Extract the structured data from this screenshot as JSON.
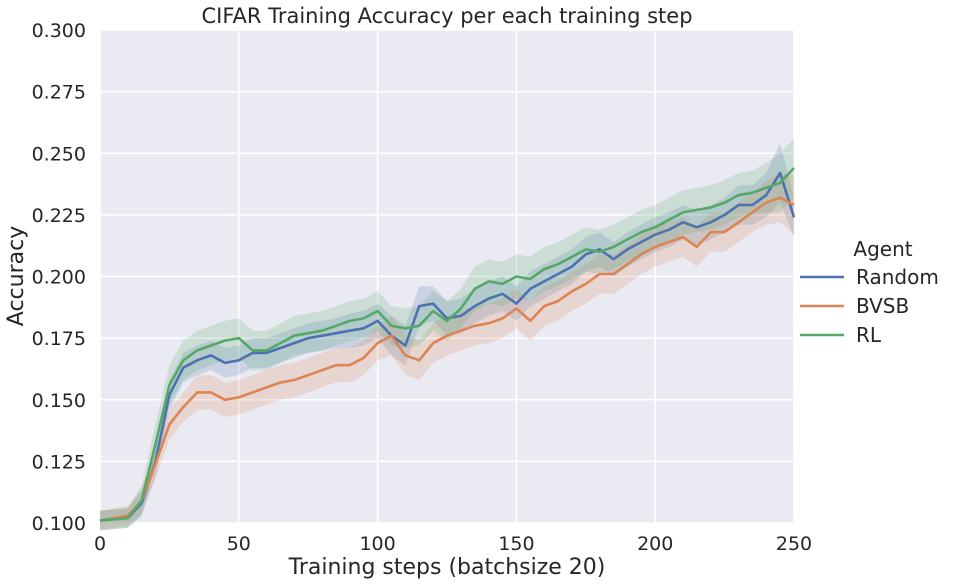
{
  "chart_data": {
    "type": "line",
    "title": "CIFAR Training Accuracy per each training step",
    "xlabel": "Training steps (batchsize 20)",
    "ylabel": "Accuracy",
    "xlim": [
      0,
      250
    ],
    "ylim": [
      0.1,
      0.3
    ],
    "xticks": [
      0,
      50,
      100,
      150,
      200,
      250
    ],
    "xtick_labels": [
      "0",
      "50",
      "100",
      "150",
      "200",
      "250"
    ],
    "yticks": [
      0.1,
      0.125,
      0.15,
      0.175,
      0.2,
      0.225,
      0.25,
      0.275,
      0.3
    ],
    "ytick_labels": [
      "0.100",
      "0.125",
      "0.150",
      "0.175",
      "0.200",
      "0.225",
      "0.250",
      "0.275",
      "0.300"
    ],
    "grid": true,
    "legend": {
      "title": "Agent",
      "placement": "right"
    },
    "x": [
      0,
      10,
      15,
      20,
      25,
      30,
      35,
      40,
      45,
      50,
      55,
      60,
      65,
      70,
      75,
      80,
      85,
      90,
      95,
      100,
      105,
      110,
      115,
      120,
      125,
      130,
      135,
      140,
      145,
      150,
      155,
      160,
      165,
      170,
      175,
      180,
      185,
      190,
      195,
      200,
      205,
      210,
      215,
      220,
      225,
      230,
      235,
      240,
      245,
      250
    ],
    "series": [
      {
        "name": "Random",
        "color": "#4c72b0",
        "values": [
          0.101,
          0.102,
          0.108,
          0.125,
          0.152,
          0.163,
          0.166,
          0.168,
          0.165,
          0.166,
          0.169,
          0.169,
          0.171,
          0.173,
          0.175,
          0.176,
          0.177,
          0.178,
          0.179,
          0.182,
          0.176,
          0.172,
          0.188,
          0.189,
          0.183,
          0.184,
          0.188,
          0.191,
          0.193,
          0.189,
          0.195,
          0.198,
          0.201,
          0.204,
          0.209,
          0.211,
          0.207,
          0.211,
          0.214,
          0.217,
          0.219,
          0.222,
          0.22,
          0.222,
          0.225,
          0.229,
          0.229,
          0.233,
          0.242,
          0.224
        ],
        "band": [
          0.004,
          0.004,
          0.005,
          0.006,
          0.006,
          0.006,
          0.006,
          0.006,
          0.006,
          0.006,
          0.006,
          0.006,
          0.006,
          0.006,
          0.006,
          0.006,
          0.006,
          0.007,
          0.007,
          0.007,
          0.008,
          0.008,
          0.008,
          0.007,
          0.007,
          0.007,
          0.007,
          0.007,
          0.007,
          0.007,
          0.007,
          0.007,
          0.007,
          0.007,
          0.007,
          0.007,
          0.007,
          0.007,
          0.007,
          0.007,
          0.007,
          0.007,
          0.007,
          0.007,
          0.007,
          0.008,
          0.008,
          0.009,
          0.012,
          0.008
        ]
      },
      {
        "name": "BVSB",
        "color": "#dd8452",
        "values": [
          0.101,
          0.103,
          0.109,
          0.124,
          0.14,
          0.147,
          0.153,
          0.153,
          0.15,
          0.151,
          0.153,
          0.155,
          0.157,
          0.158,
          0.16,
          0.162,
          0.164,
          0.164,
          0.167,
          0.173,
          0.176,
          0.168,
          0.166,
          0.173,
          0.176,
          0.178,
          0.18,
          0.181,
          0.183,
          0.187,
          0.182,
          0.188,
          0.19,
          0.194,
          0.197,
          0.201,
          0.201,
          0.205,
          0.209,
          0.212,
          0.214,
          0.216,
          0.212,
          0.218,
          0.218,
          0.222,
          0.226,
          0.23,
          0.232,
          0.229
        ],
        "band": [
          0.004,
          0.004,
          0.005,
          0.006,
          0.006,
          0.006,
          0.007,
          0.007,
          0.007,
          0.007,
          0.007,
          0.007,
          0.007,
          0.007,
          0.007,
          0.007,
          0.007,
          0.007,
          0.007,
          0.007,
          0.008,
          0.008,
          0.008,
          0.008,
          0.008,
          0.008,
          0.008,
          0.008,
          0.008,
          0.008,
          0.008,
          0.008,
          0.008,
          0.008,
          0.008,
          0.008,
          0.008,
          0.008,
          0.008,
          0.008,
          0.008,
          0.008,
          0.008,
          0.008,
          0.008,
          0.008,
          0.008,
          0.009,
          0.01,
          0.012
        ]
      },
      {
        "name": "RL",
        "color": "#55a868",
        "values": [
          0.101,
          0.102,
          0.109,
          0.132,
          0.156,
          0.166,
          0.17,
          0.172,
          0.174,
          0.175,
          0.17,
          0.17,
          0.173,
          0.176,
          0.177,
          0.178,
          0.18,
          0.182,
          0.183,
          0.186,
          0.18,
          0.179,
          0.18,
          0.186,
          0.182,
          0.187,
          0.195,
          0.198,
          0.197,
          0.2,
          0.199,
          0.203,
          0.205,
          0.208,
          0.211,
          0.21,
          0.212,
          0.215,
          0.218,
          0.22,
          0.223,
          0.226,
          0.227,
          0.228,
          0.23,
          0.233,
          0.234,
          0.236,
          0.238,
          0.244
        ],
        "band": [
          0.004,
          0.004,
          0.006,
          0.008,
          0.008,
          0.008,
          0.008,
          0.008,
          0.008,
          0.008,
          0.008,
          0.008,
          0.008,
          0.008,
          0.008,
          0.008,
          0.008,
          0.008,
          0.008,
          0.008,
          0.008,
          0.008,
          0.008,
          0.008,
          0.008,
          0.008,
          0.009,
          0.009,
          0.009,
          0.009,
          0.009,
          0.009,
          0.009,
          0.009,
          0.009,
          0.009,
          0.009,
          0.009,
          0.009,
          0.009,
          0.009,
          0.009,
          0.009,
          0.009,
          0.009,
          0.009,
          0.009,
          0.01,
          0.012,
          0.012
        ]
      }
    ]
  }
}
